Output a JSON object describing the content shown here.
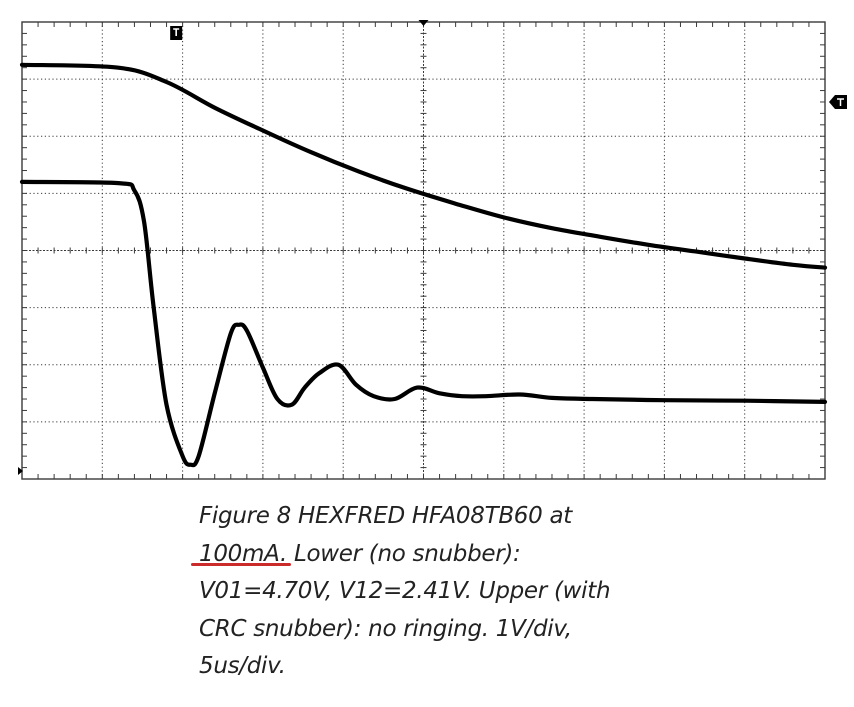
{
  "chart_data": {
    "type": "line",
    "title": "",
    "xlabel": "",
    "ylabel": "",
    "grid": true,
    "graticule": {
      "x_divisions": 10,
      "y_divisions": 8,
      "minor_per_div": 5
    },
    "x_unit": "us",
    "y_unit": "V",
    "xlim": [
      0,
      50
    ],
    "ylim": [
      -4,
      4
    ],
    "time_per_div_us": 5,
    "volts_per_div": 1,
    "trigger_time_us": 9.6,
    "trigger_level_div": 2.6,
    "series": [
      {
        "name": "",
        "x": [
          0,
          6,
          9,
          12,
          15,
          18,
          21,
          24,
          27,
          30,
          33,
          36,
          39,
          42,
          45,
          48,
          50
        ],
        "y": [
          3.25,
          3.2,
          2.95,
          2.5,
          2.1,
          1.72,
          1.38,
          1.08,
          0.82,
          0.58,
          0.39,
          0.24,
          0.1,
          -0.02,
          -0.14,
          -0.25,
          -0.3
        ]
      },
      {
        "name": "",
        "x": [
          0,
          6,
          7,
          7.6,
          8.2,
          9,
          10,
          10.5,
          11,
          12,
          13,
          13.5,
          14,
          15,
          15.9,
          16.8,
          17.6,
          18.5,
          19.7,
          20.8,
          21.9,
          23.2,
          24.6,
          26,
          27.4,
          28.9,
          31,
          33,
          35.5,
          40,
          45,
          50
        ],
        "y": [
          1.2,
          1.18,
          1.05,
          0.5,
          -1.0,
          -2.7,
          -3.6,
          -3.75,
          -3.6,
          -2.5,
          -1.45,
          -1.3,
          -1.4,
          -2.05,
          -2.6,
          -2.7,
          -2.4,
          -2.15,
          -2.0,
          -2.35,
          -2.55,
          -2.6,
          -2.4,
          -2.5,
          -2.55,
          -2.55,
          -2.52,
          -2.58,
          -2.6,
          -2.62,
          -2.63,
          -2.65
        ]
      }
    ],
    "colors": {
      "trace": "#000000",
      "graticule": "#3a3a3a",
      "underline": "#cc2b2b"
    }
  },
  "caption": {
    "line1": "Figure 8 HEXFRED HFA08TB60 at",
    "line2_highlight": "100mA.",
    "line2_rest": " Lower (no snubber):",
    "line3": "V01=4.70V, V12=2.41V.  Upper (with",
    "line4": "CRC snubber): no ringing.  1V/div,",
    "line5": "5us/div."
  }
}
